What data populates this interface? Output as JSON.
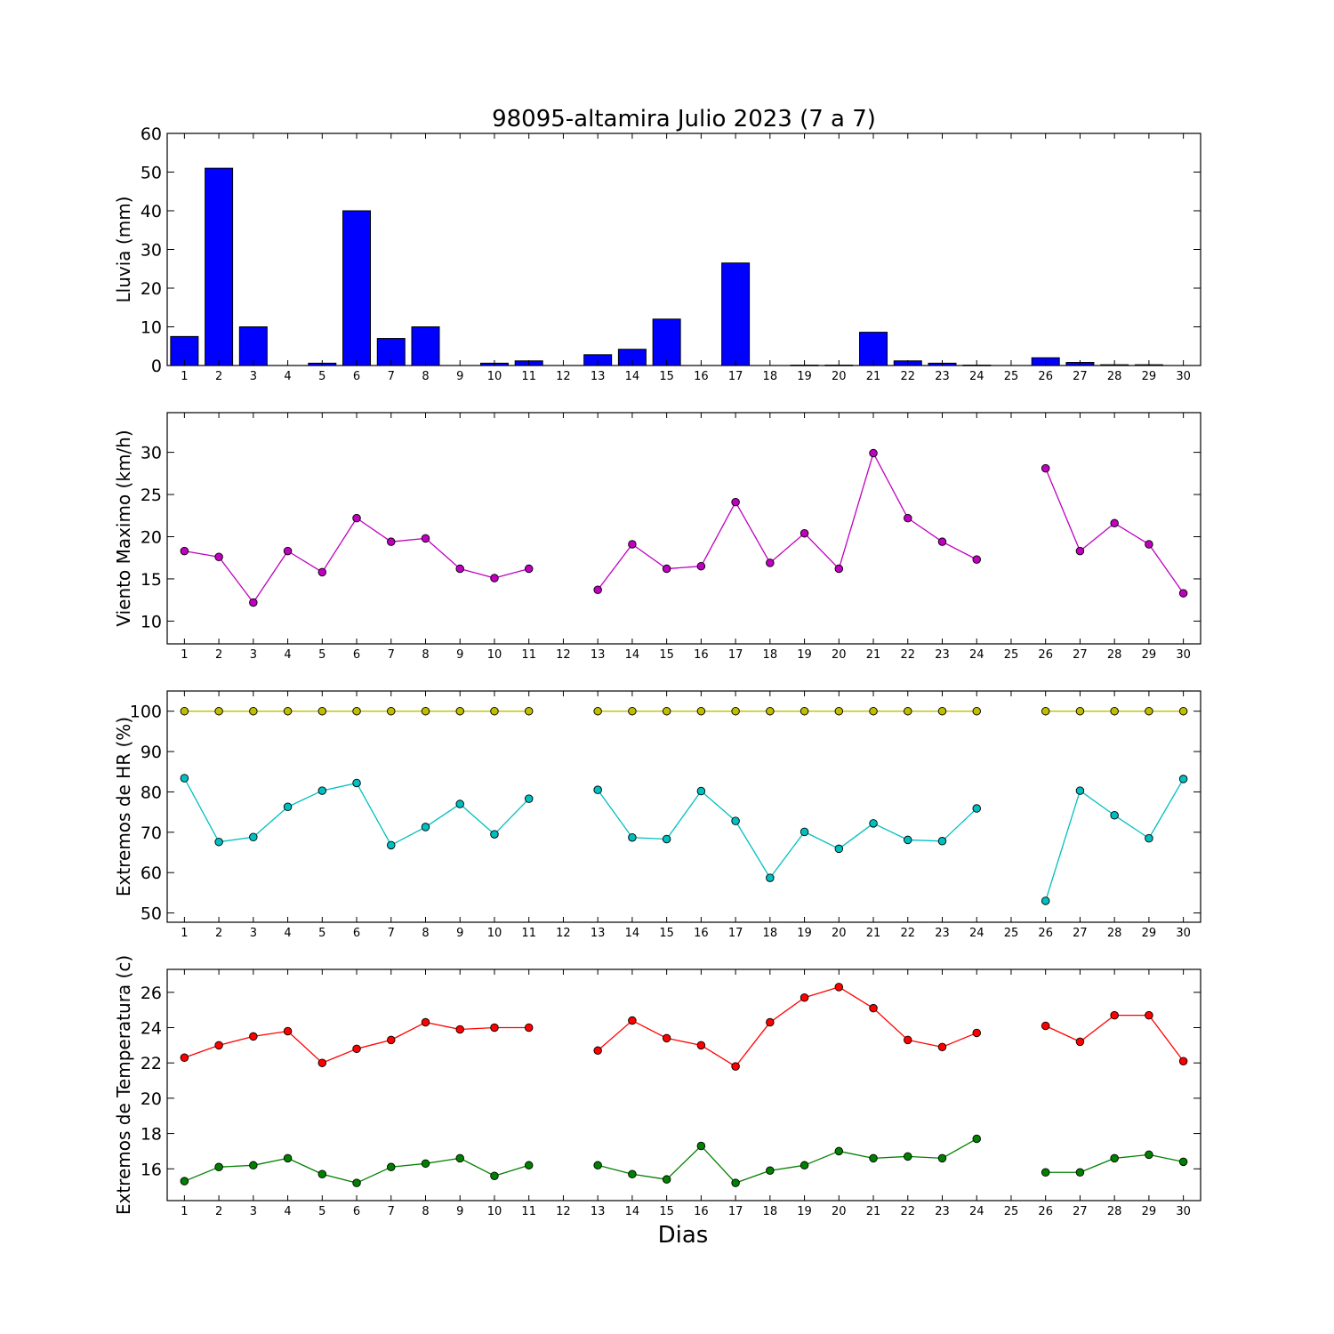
{
  "title": "98095-altamira Julio 2023  (7 a 7)",
  "xlabel": "Dias",
  "x_ticks": [
    "1",
    "2",
    "3",
    "4",
    "5",
    "6",
    "7",
    "8",
    "9",
    "10",
    "11",
    "12",
    "13",
    "14",
    "15",
    "16",
    "17",
    "18",
    "19",
    "20",
    "21",
    "22",
    "23",
    "24",
    "25",
    "26",
    "27",
    "28",
    "29",
    "30"
  ],
  "colors": {
    "rain": "#0000ff",
    "wind": "#bf00bf",
    "hr_max": "#bfbf00",
    "hr_min": "#00bfbf",
    "temp_max": "#ff0000",
    "temp_min": "#008000"
  },
  "chart_data": [
    {
      "type": "bar",
      "ylabel": "Lluvia (mm)",
      "ylim": [
        0,
        60
      ],
      "yticks": [
        "0",
        "10",
        "20",
        "30",
        "40",
        "50",
        "60"
      ],
      "x": [
        1,
        2,
        3,
        4,
        5,
        6,
        7,
        8,
        9,
        10,
        11,
        12,
        13,
        14,
        15,
        16,
        17,
        18,
        19,
        20,
        21,
        22,
        23,
        24,
        25,
        26,
        27,
        28,
        29,
        30
      ],
      "values": [
        7.5,
        51,
        10,
        0,
        0.6,
        40,
        7,
        10,
        0,
        0.6,
        1.2,
        0,
        2.8,
        4.2,
        12,
        0,
        26.5,
        0,
        0.1,
        0.1,
        8.6,
        1.2,
        0.6,
        0.1,
        0,
        2,
        0.8,
        0.2,
        0.2,
        0
      ],
      "grid": false
    },
    {
      "type": "line",
      "ylabel": "Viento Maximo (km/h)",
      "ylim": [
        7.3,
        34.7
      ],
      "yticks": [
        "10",
        "15",
        "20",
        "25",
        "30"
      ],
      "series": [
        {
          "x": [
            1,
            2,
            3,
            4,
            5,
            6,
            7,
            8,
            9,
            10,
            11,
            12,
            13,
            14,
            15,
            16,
            17,
            18,
            19,
            20,
            21,
            22,
            23,
            24,
            25,
            26,
            27,
            28,
            29,
            30
          ],
          "values": [
            18.3,
            17.6,
            12.2,
            18.3,
            15.8,
            22.2,
            19.4,
            19.8,
            16.2,
            15.1,
            16.2,
            null,
            13.7,
            19.1,
            16.2,
            16.5,
            24.1,
            16.9,
            20.4,
            16.2,
            29.9,
            22.2,
            19.4,
            17.3,
            null,
            28.1,
            18.3,
            21.6,
            19.1,
            13.3
          ]
        }
      ],
      "grid": false
    },
    {
      "type": "line",
      "ylabel": "Extremos de HR (%)",
      "ylim": [
        47.7,
        105
      ],
      "yticks": [
        "50",
        "60",
        "70",
        "80",
        "90",
        "100"
      ],
      "series": [
        {
          "x": [
            1,
            2,
            3,
            4,
            5,
            6,
            7,
            8,
            9,
            10,
            11,
            12,
            13,
            14,
            15,
            16,
            17,
            18,
            19,
            20,
            21,
            22,
            23,
            24,
            25,
            26,
            27,
            28,
            29,
            30
          ],
          "values": [
            100,
            100,
            100,
            100,
            100,
            100,
            100,
            100,
            100,
            100,
            100,
            null,
            100,
            100,
            100,
            100,
            100,
            100,
            100,
            100,
            100,
            100,
            100,
            100,
            null,
            100,
            100,
            100,
            100,
            100
          ]
        },
        {
          "x": [
            1,
            2,
            3,
            4,
            5,
            6,
            7,
            8,
            9,
            10,
            11,
            12,
            13,
            14,
            15,
            16,
            17,
            18,
            19,
            20,
            21,
            22,
            23,
            24,
            25,
            26,
            27,
            28,
            29,
            30
          ],
          "values": [
            83.4,
            67.6,
            68.8,
            76.3,
            80.3,
            82.2,
            66.8,
            71.3,
            77,
            69.5,
            78.3,
            null,
            80.5,
            68.7,
            68.3,
            80.2,
            72.8,
            58.7,
            70.1,
            65.9,
            72.2,
            68.1,
            67.8,
            75.9,
            null,
            53,
            80.3,
            74.2,
            68.5,
            83.2
          ]
        }
      ],
      "grid": false
    },
    {
      "type": "line",
      "ylabel": "Extremos de Temperatura (c)",
      "ylim": [
        14.2,
        27.3
      ],
      "yticks": [
        "16",
        "18",
        "20",
        "22",
        "24",
        "26"
      ],
      "series": [
        {
          "x": [
            1,
            2,
            3,
            4,
            5,
            6,
            7,
            8,
            9,
            10,
            11,
            12,
            13,
            14,
            15,
            16,
            17,
            18,
            19,
            20,
            21,
            22,
            23,
            24,
            25,
            26,
            27,
            28,
            29,
            30
          ],
          "values": [
            22.3,
            23,
            23.5,
            23.8,
            22,
            22.8,
            23.3,
            24.3,
            23.9,
            24,
            24,
            null,
            22.7,
            24.4,
            23.4,
            23,
            21.8,
            24.3,
            25.7,
            26.3,
            25.1,
            23.3,
            22.9,
            23.7,
            null,
            24.1,
            23.2,
            24.7,
            24.7,
            22.1
          ]
        },
        {
          "x": [
            1,
            2,
            3,
            4,
            5,
            6,
            7,
            8,
            9,
            10,
            11,
            12,
            13,
            14,
            15,
            16,
            17,
            18,
            19,
            20,
            21,
            22,
            23,
            24,
            25,
            26,
            27,
            28,
            29,
            30
          ],
          "values": [
            15.3,
            16.1,
            16.2,
            16.6,
            15.7,
            15.2,
            16.1,
            16.3,
            16.6,
            15.6,
            16.2,
            null,
            16.2,
            15.7,
            15.4,
            17.3,
            15.2,
            15.9,
            16.2,
            17,
            16.6,
            16.7,
            16.6,
            17.7,
            null,
            15.8,
            15.8,
            16.6,
            16.8,
            16.4
          ]
        }
      ],
      "grid": false
    }
  ]
}
